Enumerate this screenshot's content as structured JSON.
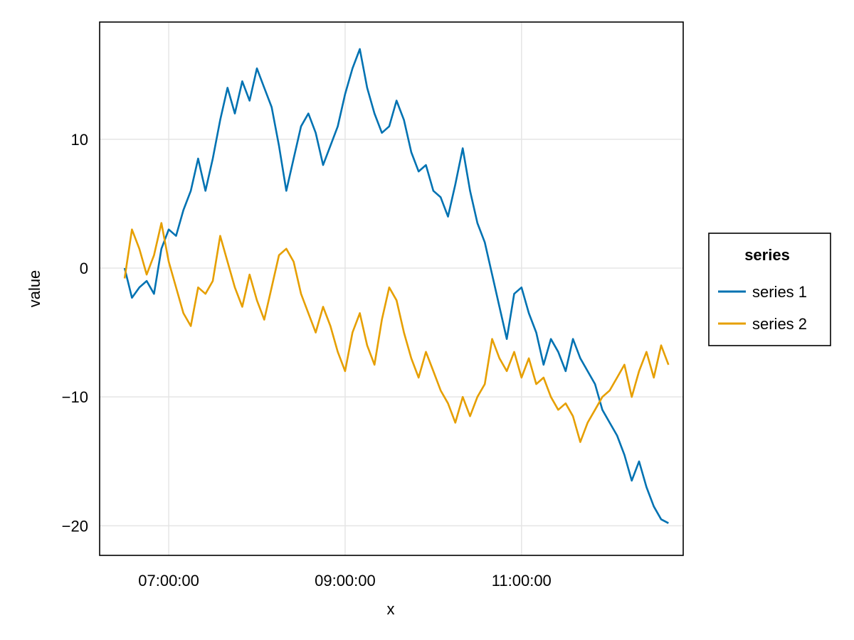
{
  "chart_data": {
    "type": "line",
    "title": "",
    "xlabel": "x",
    "ylabel": "value",
    "x_tick_labels": [
      "07:00:00",
      "09:00:00",
      "11:00:00"
    ],
    "x_tick_values": [
      "07:00:00",
      "09:00:00",
      "11:00:00"
    ],
    "x_range": [
      "06:13:00",
      "12:50:00"
    ],
    "y_ticks": [
      10,
      0,
      -10,
      -20
    ],
    "y_tick_labels": [
      "10",
      "0",
      "−10",
      "−20"
    ],
    "ylim": [
      -22.3,
      19.1
    ],
    "grid": true,
    "legend": {
      "title": "series",
      "position": "right"
    },
    "series": [
      {
        "name": "series 1",
        "color": "#0072B2",
        "points": [
          [
            "06:30:00",
            0.0
          ],
          [
            "06:35:00",
            -2.3
          ],
          [
            "06:40:00",
            -1.5
          ],
          [
            "06:45:00",
            -1.0
          ],
          [
            "06:50:00",
            -2.0
          ],
          [
            "06:55:00",
            1.5
          ],
          [
            "07:00:00",
            3.0
          ],
          [
            "07:05:00",
            2.5
          ],
          [
            "07:10:00",
            4.5
          ],
          [
            "07:15:00",
            6.0
          ],
          [
            "07:20:00",
            8.5
          ],
          [
            "07:25:00",
            6.0
          ],
          [
            "07:30:00",
            8.5
          ],
          [
            "07:35:00",
            11.5
          ],
          [
            "07:40:00",
            14.0
          ],
          [
            "07:45:00",
            12.0
          ],
          [
            "07:50:00",
            14.5
          ],
          [
            "07:55:00",
            13.0
          ],
          [
            "08:00:00",
            15.5
          ],
          [
            "08:05:00",
            14.0
          ],
          [
            "08:10:00",
            12.5
          ],
          [
            "08:15:00",
            9.5
          ],
          [
            "08:20:00",
            6.0
          ],
          [
            "08:25:00",
            8.5
          ],
          [
            "08:30:00",
            11.0
          ],
          [
            "08:35:00",
            12.0
          ],
          [
            "08:40:00",
            10.5
          ],
          [
            "08:45:00",
            8.0
          ],
          [
            "08:50:00",
            9.5
          ],
          [
            "08:55:00",
            11.0
          ],
          [
            "09:00:00",
            13.5
          ],
          [
            "09:05:00",
            15.5
          ],
          [
            "09:10:00",
            17.0
          ],
          [
            "09:15:00",
            14.0
          ],
          [
            "09:20:00",
            12.0
          ],
          [
            "09:25:00",
            10.5
          ],
          [
            "09:30:00",
            11.0
          ],
          [
            "09:35:00",
            13.0
          ],
          [
            "09:40:00",
            11.5
          ],
          [
            "09:45:00",
            9.0
          ],
          [
            "09:50:00",
            7.5
          ],
          [
            "09:55:00",
            8.0
          ],
          [
            "10:00:00",
            6.0
          ],
          [
            "10:05:00",
            5.5
          ],
          [
            "10:10:00",
            4.0
          ],
          [
            "10:15:00",
            6.5
          ],
          [
            "10:20:00",
            9.3
          ],
          [
            "10:25:00",
            6.0
          ],
          [
            "10:30:00",
            3.5
          ],
          [
            "10:35:00",
            2.0
          ],
          [
            "10:40:00",
            -0.5
          ],
          [
            "10:45:00",
            -3.0
          ],
          [
            "10:50:00",
            -5.5
          ],
          [
            "10:55:00",
            -2.0
          ],
          [
            "11:00:00",
            -1.5
          ],
          [
            "11:05:00",
            -3.5
          ],
          [
            "11:10:00",
            -5.0
          ],
          [
            "11:15:00",
            -7.5
          ],
          [
            "11:20:00",
            -5.5
          ],
          [
            "11:25:00",
            -6.5
          ],
          [
            "11:30:00",
            -8.0
          ],
          [
            "11:35:00",
            -5.5
          ],
          [
            "11:40:00",
            -7.0
          ],
          [
            "11:45:00",
            -8.0
          ],
          [
            "11:50:00",
            -9.0
          ],
          [
            "11:55:00",
            -11.0
          ],
          [
            "12:00:00",
            -12.0
          ],
          [
            "12:05:00",
            -13.0
          ],
          [
            "12:10:00",
            -14.5
          ],
          [
            "12:15:00",
            -16.5
          ],
          [
            "12:20:00",
            -15.0
          ],
          [
            "12:25:00",
            -17.0
          ],
          [
            "12:30:00",
            -18.5
          ],
          [
            "12:35:00",
            -19.5
          ],
          [
            "12:40:00",
            -19.8
          ]
        ]
      },
      {
        "name": "series 2",
        "color": "#E69F00",
        "points": [
          [
            "06:30:00",
            -0.8
          ],
          [
            "06:35:00",
            3.0
          ],
          [
            "06:40:00",
            1.5
          ],
          [
            "06:45:00",
            -0.5
          ],
          [
            "06:50:00",
            1.0
          ],
          [
            "06:55:00",
            3.5
          ],
          [
            "07:00:00",
            0.5
          ],
          [
            "07:05:00",
            -1.5
          ],
          [
            "07:10:00",
            -3.5
          ],
          [
            "07:15:00",
            -4.5
          ],
          [
            "07:20:00",
            -1.5
          ],
          [
            "07:25:00",
            -2.0
          ],
          [
            "07:30:00",
            -1.0
          ],
          [
            "07:35:00",
            2.5
          ],
          [
            "07:40:00",
            0.5
          ],
          [
            "07:45:00",
            -1.5
          ],
          [
            "07:50:00",
            -3.0
          ],
          [
            "07:55:00",
            -0.5
          ],
          [
            "08:00:00",
            -2.5
          ],
          [
            "08:05:00",
            -4.0
          ],
          [
            "08:10:00",
            -1.5
          ],
          [
            "08:15:00",
            1.0
          ],
          [
            "08:20:00",
            1.5
          ],
          [
            "08:25:00",
            0.5
          ],
          [
            "08:30:00",
            -2.0
          ],
          [
            "08:35:00",
            -3.5
          ],
          [
            "08:40:00",
            -5.0
          ],
          [
            "08:45:00",
            -3.0
          ],
          [
            "08:50:00",
            -4.5
          ],
          [
            "08:55:00",
            -6.5
          ],
          [
            "09:00:00",
            -8.0
          ],
          [
            "09:05:00",
            -5.0
          ],
          [
            "09:10:00",
            -3.5
          ],
          [
            "09:15:00",
            -6.0
          ],
          [
            "09:20:00",
            -7.5
          ],
          [
            "09:25:00",
            -4.0
          ],
          [
            "09:30:00",
            -1.5
          ],
          [
            "09:35:00",
            -2.5
          ],
          [
            "09:40:00",
            -5.0
          ],
          [
            "09:45:00",
            -7.0
          ],
          [
            "09:50:00",
            -8.5
          ],
          [
            "09:55:00",
            -6.5
          ],
          [
            "10:00:00",
            -8.0
          ],
          [
            "10:05:00",
            -9.5
          ],
          [
            "10:10:00",
            -10.5
          ],
          [
            "10:15:00",
            -12.0
          ],
          [
            "10:20:00",
            -10.0
          ],
          [
            "10:25:00",
            -11.5
          ],
          [
            "10:30:00",
            -10.0
          ],
          [
            "10:35:00",
            -9.0
          ],
          [
            "10:40:00",
            -5.5
          ],
          [
            "10:45:00",
            -7.0
          ],
          [
            "10:50:00",
            -8.0
          ],
          [
            "10:55:00",
            -6.5
          ],
          [
            "11:00:00",
            -8.5
          ],
          [
            "11:05:00",
            -7.0
          ],
          [
            "11:10:00",
            -9.0
          ],
          [
            "11:15:00",
            -8.5
          ],
          [
            "11:20:00",
            -10.0
          ],
          [
            "11:25:00",
            -11.0
          ],
          [
            "11:30:00",
            -10.5
          ],
          [
            "11:35:00",
            -11.5
          ],
          [
            "11:40:00",
            -13.5
          ],
          [
            "11:45:00",
            -12.0
          ],
          [
            "11:50:00",
            -11.0
          ],
          [
            "11:55:00",
            -10.0
          ],
          [
            "12:00:00",
            -9.5
          ],
          [
            "12:05:00",
            -8.5
          ],
          [
            "12:10:00",
            -7.5
          ],
          [
            "12:15:00",
            -10.0
          ],
          [
            "12:20:00",
            -8.0
          ],
          [
            "12:25:00",
            -6.5
          ],
          [
            "12:30:00",
            -8.5
          ],
          [
            "12:35:00",
            -6.0
          ],
          [
            "12:40:00",
            -7.5
          ]
        ]
      }
    ]
  }
}
